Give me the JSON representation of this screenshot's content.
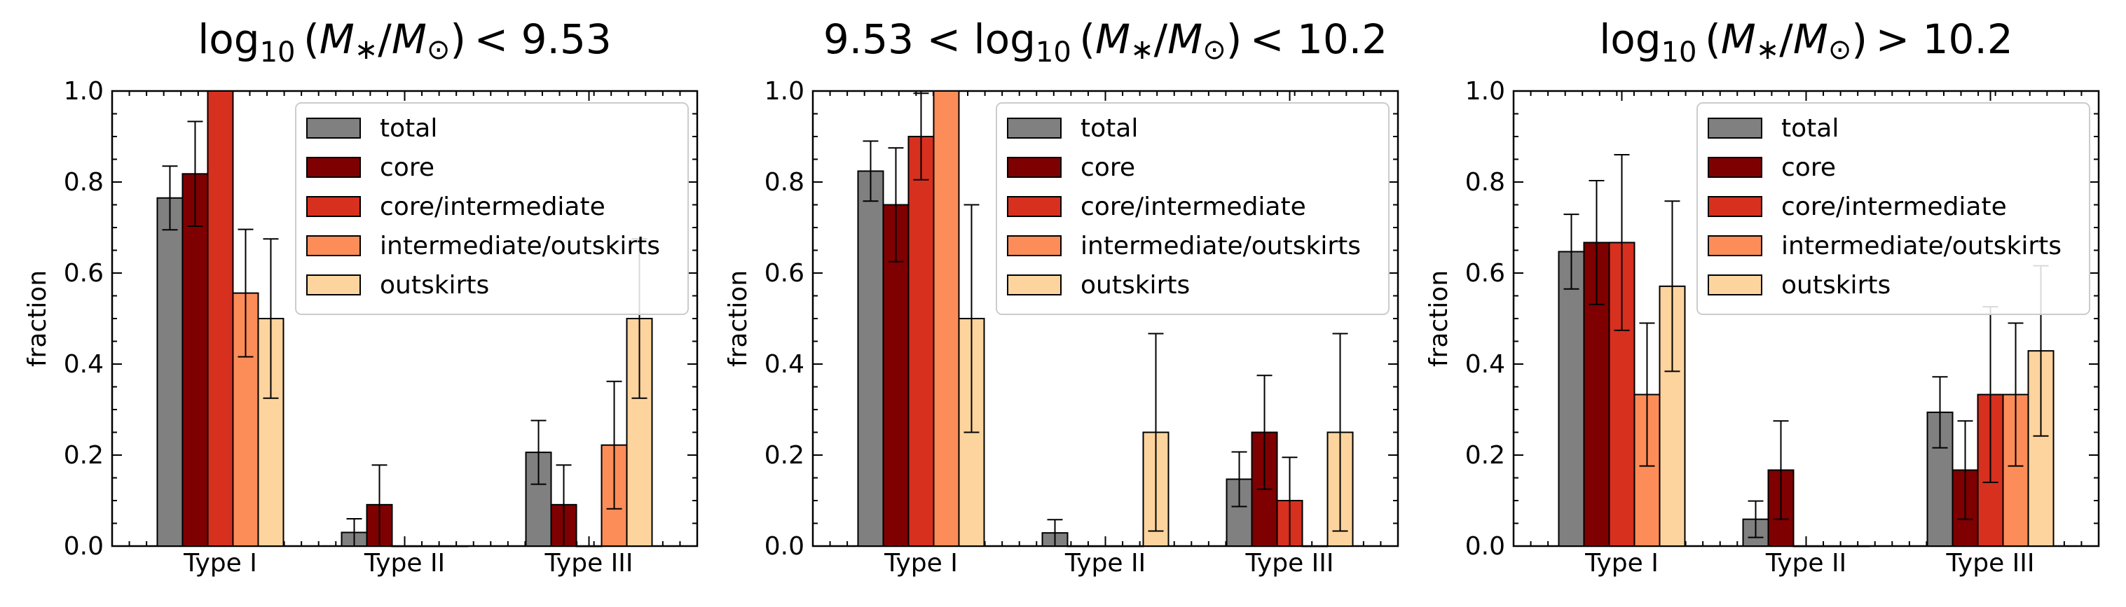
{
  "colors": {
    "total": "#808080",
    "core": "#7f0000",
    "core/intermediate": "#d7301f",
    "intermediate/outskirts": "#fc8d59",
    "outskirts": "#fdd49e"
  },
  "chart_data": [
    {
      "type": "bar",
      "title": "log₁₀ (M∗/M⊙) <  9.53",
      "title_parts": {
        "pre": "",
        "mid": "<",
        "post": " 9.53"
      },
      "xlabel": "",
      "ylabel": "fraction",
      "ylim": [
        0,
        1
      ],
      "yticks": [
        "0.0",
        "0.2",
        "0.4",
        "0.6",
        "0.8",
        "1.0"
      ],
      "categories": [
        "Type I",
        "Type II",
        "Type III"
      ],
      "legend": "top-right",
      "series": [
        {
          "name": "total",
          "values": [
            0.765,
            0.03,
            0.206
          ],
          "err_low": [
            0.07,
            0.03,
            0.07
          ],
          "err_high": [
            0.07,
            0.03,
            0.07
          ]
        },
        {
          "name": "core",
          "values": [
            0.818,
            0.091,
            0.091
          ],
          "err_low": [
            0.115,
            0.091,
            0.091
          ],
          "err_high": [
            0.115,
            0.087,
            0.087
          ]
        },
        {
          "name": "core/intermediate",
          "values": [
            1.0,
            0.0,
            0.0
          ],
          "err_low": [
            0,
            0,
            0
          ],
          "err_high": [
            0,
            0,
            0
          ]
        },
        {
          "name": "intermediate/outskirts",
          "values": [
            0.556,
            0.0,
            0.222
          ],
          "err_low": [
            0.14,
            0,
            0.14
          ],
          "err_high": [
            0.14,
            0,
            0.14
          ]
        },
        {
          "name": "outskirts",
          "values": [
            0.5,
            0.0,
            0.5
          ],
          "err_low": [
            0.175,
            0,
            0.175
          ],
          "err_high": [
            0.175,
            0,
            0.175
          ]
        }
      ]
    },
    {
      "type": "bar",
      "title": "9.53 < log₁₀ (M∗/M⊙) <  10.2",
      "title_parts": {
        "pre": "9.53 < ",
        "mid": "<",
        "post": " 10.2"
      },
      "xlabel": "",
      "ylabel": "fraction",
      "ylim": [
        0,
        1
      ],
      "yticks": [
        "0.0",
        "0.2",
        "0.4",
        "0.6",
        "0.8",
        "1.0"
      ],
      "categories": [
        "Type I",
        "Type II",
        "Type III"
      ],
      "legend": "top-right",
      "series": [
        {
          "name": "total",
          "values": [
            0.824,
            0.029,
            0.147
          ],
          "err_low": [
            0.066,
            0.029,
            0.06
          ],
          "err_high": [
            0.066,
            0.029,
            0.06
          ]
        },
        {
          "name": "core",
          "values": [
            0.75,
            0.0,
            0.25
          ],
          "err_low": [
            0.125,
            0,
            0.125
          ],
          "err_high": [
            0.125,
            0,
            0.125
          ]
        },
        {
          "name": "core/intermediate",
          "values": [
            0.9,
            0.0,
            0.1
          ],
          "err_low": [
            0.095,
            0,
            0.1
          ],
          "err_high": [
            0.095,
            0,
            0.095
          ]
        },
        {
          "name": "intermediate/outskirts",
          "values": [
            1.0,
            0.0,
            0.0
          ],
          "err_low": [
            0,
            0,
            0
          ],
          "err_high": [
            0,
            0,
            0
          ]
        },
        {
          "name": "outskirts",
          "values": [
            0.5,
            0.25,
            0.25
          ],
          "err_low": [
            0.25,
            0.217,
            0.217
          ],
          "err_high": [
            0.25,
            0.217,
            0.217
          ]
        }
      ]
    },
    {
      "type": "bar",
      "title": "log₁₀ (M∗/M⊙) >  10.2",
      "title_parts": {
        "pre": "",
        "mid": ">",
        "post": " 10.2"
      },
      "xlabel": "",
      "ylabel": "fraction",
      "ylim": [
        0,
        1
      ],
      "yticks": [
        "0.0",
        "0.2",
        "0.4",
        "0.6",
        "0.8",
        "1.0"
      ],
      "categories": [
        "Type I",
        "Type II",
        "Type III"
      ],
      "legend": "top-right",
      "series": [
        {
          "name": "total",
          "values": [
            0.647,
            0.059,
            0.294
          ],
          "err_low": [
            0.082,
            0.04,
            0.078
          ],
          "err_high": [
            0.082,
            0.04,
            0.078
          ]
        },
        {
          "name": "core",
          "values": [
            0.667,
            0.167,
            0.167
          ],
          "err_low": [
            0.136,
            0.108,
            0.108
          ],
          "err_high": [
            0.136,
            0.108,
            0.108
          ]
        },
        {
          "name": "core/intermediate",
          "values": [
            0.667,
            0.0,
            0.333
          ],
          "err_low": [
            0.193,
            0,
            0.193
          ],
          "err_high": [
            0.193,
            0,
            0.193
          ]
        },
        {
          "name": "intermediate/outskirts",
          "values": [
            0.333,
            0.0,
            0.333
          ],
          "err_low": [
            0.157,
            0,
            0.157
          ],
          "err_high": [
            0.157,
            0,
            0.157
          ]
        },
        {
          "name": "outskirts",
          "values": [
            0.571,
            0.0,
            0.429
          ],
          "err_low": [
            0.187,
            0,
            0.187
          ],
          "err_high": [
            0.187,
            0,
            0.187
          ]
        }
      ]
    }
  ]
}
